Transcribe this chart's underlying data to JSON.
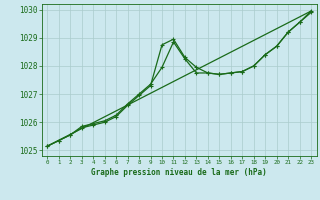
{
  "title": "Graphe pression niveau de la mer (hPa)",
  "background_color": "#cce8ee",
  "grid_color": "#aacccc",
  "line_color": "#1a6b1a",
  "marker_color": "#1a6b1a",
  "xlim": [
    -0.5,
    23.5
  ],
  "ylim": [
    1024.8,
    1030.2
  ],
  "xtick_step": 1,
  "ytick_step": 1,
  "yticks": [
    1025,
    1026,
    1027,
    1028,
    1029,
    1030
  ],
  "xticks": [
    0,
    1,
    2,
    3,
    4,
    5,
    6,
    7,
    8,
    9,
    10,
    11,
    12,
    13,
    14,
    15,
    16,
    17,
    18,
    19,
    20,
    21,
    22,
    23
  ],
  "series1_x": [
    0,
    1,
    2,
    3,
    4,
    5,
    6,
    7,
    8,
    9,
    10,
    11,
    12,
    13,
    14,
    15,
    16,
    17,
    18,
    19,
    20,
    21,
    22,
    23
  ],
  "series1_y": [
    1025.15,
    1025.35,
    1025.55,
    1025.85,
    1025.95,
    1026.05,
    1026.25,
    1026.65,
    1027.0,
    1027.35,
    1027.95,
    1028.85,
    1028.25,
    1027.75,
    1027.75,
    1027.7,
    1027.75,
    1027.8,
    1028.0,
    1028.4,
    1028.7,
    1029.2,
    1029.55,
    1029.95
  ],
  "series2_x": [
    0,
    1,
    2,
    3,
    4,
    5,
    6,
    7,
    8,
    9,
    10,
    11,
    12,
    13,
    14,
    15,
    16,
    17,
    18,
    19,
    20,
    21,
    22,
    23
  ],
  "series2_y": [
    1025.15,
    1025.35,
    1025.55,
    1025.8,
    1025.9,
    1026.0,
    1026.2,
    1026.6,
    1026.95,
    1027.3,
    1028.75,
    1028.95,
    1028.3,
    1027.95,
    1027.75,
    1027.7,
    1027.75,
    1027.8,
    1028.0,
    1028.4,
    1028.7,
    1029.2,
    1029.55,
    1029.9
  ],
  "series3_x": [
    0,
    23
  ],
  "series3_y": [
    1025.15,
    1029.95
  ]
}
